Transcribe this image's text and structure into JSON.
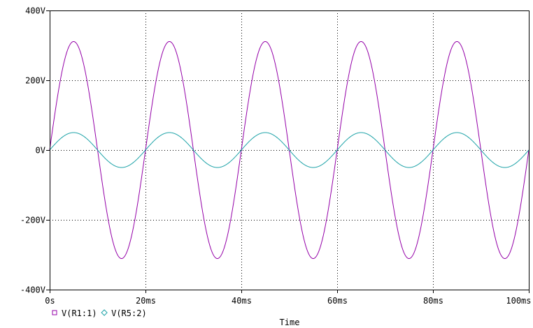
{
  "chart_data": {
    "type": "line",
    "xlabel": "Time",
    "ylabel": "",
    "xlim": [
      0,
      100
    ],
    "ylim": [
      -400,
      400
    ],
    "x_unit": "ms",
    "y_unit": "V",
    "x_ticks": [
      0,
      20,
      40,
      60,
      80,
      100
    ],
    "x_tick_labels": [
      "0s",
      "20ms",
      "40ms",
      "60ms",
      "80ms",
      "100ms"
    ],
    "y_ticks": [
      400,
      200,
      0,
      -200,
      -400
    ],
    "y_tick_labels": [
      "400V",
      "200V",
      "0V",
      "-200V",
      "-400V"
    ],
    "grid": "dotted",
    "legend_position": "bottom-left",
    "series": [
      {
        "name": "V(R1:1)",
        "marker": "square",
        "color": "#9400a8",
        "amplitude": 311,
        "frequency_hz": 50,
        "phase_deg": 0
      },
      {
        "name": "V(R5:2)",
        "marker": "diamond",
        "color": "#1ea3a8",
        "amplitude": 50,
        "frequency_hz": 50,
        "phase_deg": 0
      }
    ]
  }
}
